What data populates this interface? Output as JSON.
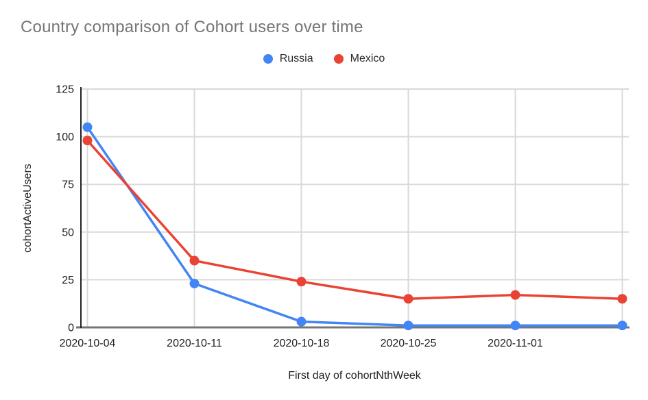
{
  "chart_data": {
    "type": "line",
    "title": "Country comparison of Cohort users over time",
    "xlabel": "First day of cohortNthWeek",
    "ylabel": "cohortActiveUsers",
    "categories": [
      "2020-10-04",
      "2020-10-11",
      "2020-10-18",
      "2020-10-25",
      "2020-11-01",
      ""
    ],
    "series": [
      {
        "name": "Russia",
        "color": "#4285f4",
        "values": [
          105,
          23,
          3,
          1,
          1,
          1
        ]
      },
      {
        "name": "Mexico",
        "color": "#ea4335",
        "values": [
          98,
          35,
          24,
          15,
          17,
          15
        ]
      }
    ],
    "ylim": [
      0,
      125
    ],
    "yticks": [
      0,
      25,
      50,
      75,
      100,
      125
    ],
    "grid": true,
    "legend_position": "top"
  },
  "colors": {
    "title_text": "#757575",
    "tick_text": "#1f1f1f",
    "gridline": "#d9d9d9",
    "x_axis_line": "#757575",
    "y_axis_line": "#212121",
    "background": "#ffffff"
  }
}
